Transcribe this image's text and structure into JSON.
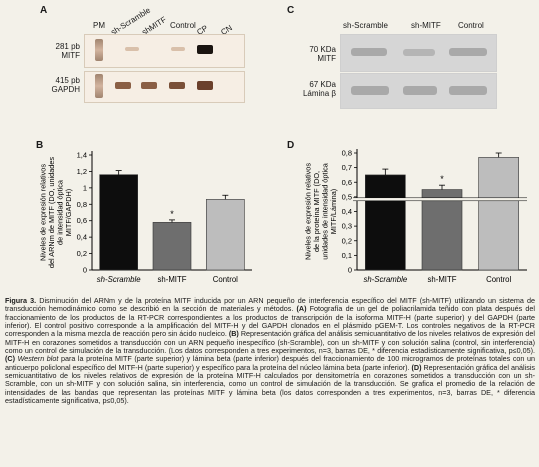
{
  "panelA": {
    "letter": "A",
    "lanes": [
      "PM",
      "sh-Scramble",
      "shMITF",
      "Control",
      "CP",
      "CN"
    ],
    "label_top": "281 pb\nMITF",
    "label_bottom": "415 pb\nGAPDH"
  },
  "panelC": {
    "letter": "C",
    "lanes": [
      "sh-Scramble",
      "sh-MITF",
      "Control"
    ],
    "label_top": "70 KDa\nMITF",
    "label_bottom": "67 KDa\nLámina β"
  },
  "chart_data": [
    {
      "panel": "B",
      "type": "bar",
      "categories": [
        "sh-Scramble",
        "sh-MITF",
        "Control"
      ],
      "values": [
        1.16,
        0.58,
        0.86
      ],
      "errors": [
        0.05,
        0.03,
        0.05
      ],
      "colors": [
        "#0d0d0d",
        "#6e6e6e",
        "#bdbdbd"
      ],
      "ylabel": "Niveles de expresión relativos del ARNm de MITF (DO, unidades de intensidad óptica MITF/GAPDH)",
      "yticks": [
        0,
        0.2,
        0.4,
        0.6,
        0.8,
        1.0,
        1.2,
        1.4
      ],
      "ylim": [
        0,
        1.4
      ],
      "annotations": [
        {
          "category": "sh-MITF",
          "text": "*"
        }
      ]
    },
    {
      "panel": "D",
      "type": "bar",
      "categories": [
        "sh-Scramble",
        "sh-MITF",
        "Control"
      ],
      "values": [
        0.65,
        0.55,
        0.77
      ],
      "errors": [
        0.04,
        0.03,
        0.03
      ],
      "colors": [
        "#0d0d0d",
        "#6e6e6e",
        "#bdbdbd"
      ],
      "ylabel": "Niveles de expresión relativos de la proteína MITF (DO, unidades de intensidad óptica MITF/Lámina)",
      "yticks": [
        0,
        0.1,
        0.2,
        0.3,
        0.4,
        0.5,
        0.6,
        0.7,
        0.8
      ],
      "ylim": [
        0,
        0.8
      ],
      "axis_break": true,
      "annotations": [
        {
          "category": "sh-MITF",
          "text": "*"
        }
      ]
    }
  ],
  "caption": {
    "figure_label": "Figura 3.",
    "p1": " Disminución del ARNm y de la proteína MITF inducida por un ARN pequeño de interferencia específico del MITF (sh-MITF) utilizando un sistema de transducción hemodinámico como se describió en la sección de materiales y métodos. ",
    "a_label": "(A)",
    "p2": " Fotografía de un gel de poliacrilamida teñido con plata después del fraccionamiento de los productos de la RT-PCR correspondientes a los productos de transcripción de la isoforma MITF-H (parte superior) y del GAPDH (parte inferior). El control positivo corresponde a la amplificación del MITF-H y del GAPDH clonados en el plásmido pGEM-T. Los controles negativos de la RT-PCR corresponden a la misma mezcla de reacción pero sin ácido nucleico. ",
    "b_label": "(B)",
    "p3": " Representación gráfica del análisis semicuantitativo de los niveles relativos de expresión del MITF-H en corazones sometidos a transducción con un ARN pequeño inespecífico (sh-Scramble), con un sh-MITF y con solución salina (control, sin interferencia) como un control de simulación de la transducción. (Los datos corresponden a tres experimentos, n=3, barras DE, * diferencia estadísticamente significativa, p≤0,05). ",
    "c_label": "(C)",
    "c_italic": " Western blot",
    "p4": " para la proteína MITF (parte superior) y lámina beta (parte inferior) después del fraccionamiento de 100 microgramos de proteínas totales con un anticuerpo policlonal específico del MITF-H (parte superior) y específico para la proteína del núcleo lámina beta (parte inferior). ",
    "d_label": "(D)",
    "p5": " Representación gráfica del análisis semicuantitativo de los niveles relativos de expresión de la proteína MITF-H calculados por densitometría en corazones sometidos a transducción con un sh-Scramble, con un sh-MITF y con solución salina, sin interferencia, como un control de simulación de la transducción. Se grafica el promedio de la relación de intensidades de las bandas que representan las proteínas MITF y lámina beta (los datos corresponden a tres experimentos, n=3, barras DE, * diferencia estadísticamente significativa, p≤0,05)."
  }
}
